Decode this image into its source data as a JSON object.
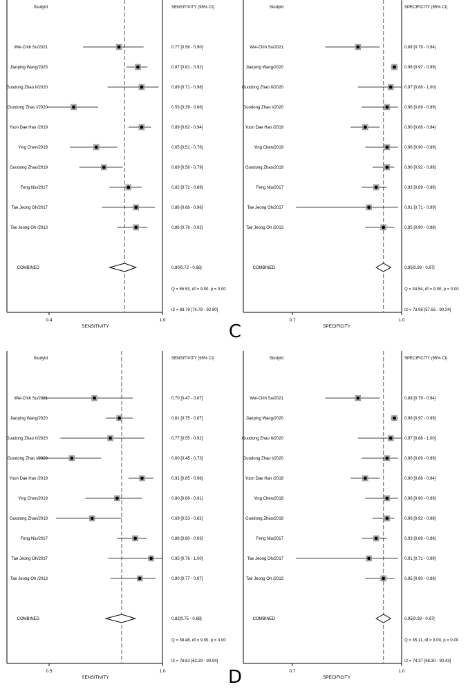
{
  "panel_letters": [
    "C",
    "D"
  ],
  "chart_data": [
    {
      "type": "forest",
      "measure": "SENSITIVITY",
      "col_header_study": "StudyId",
      "col_header_estimate": "SENSITIVITY (95% CI)",
      "xlabel": "SENSITIVITY",
      "xlim": [
        0.4,
        1.0
      ],
      "ticks": [
        {
          "v": 0.4,
          "label": "0.4"
        },
        {
          "v": 1.0,
          "label": "1.0"
        }
      ],
      "reference_line": 0.8,
      "studies": [
        {
          "name": "Wei-Chih Su/2021",
          "est": 0.77,
          "lo": 0.58,
          "hi": 0.9,
          "label": "0.77 [0.58 - 0.90]"
        },
        {
          "name": "Jianping Wang/2020",
          "est": 0.87,
          "lo": 0.81,
          "hi": 0.92,
          "label": "0.87 [0.81 - 0.92]"
        },
        {
          "name": "Guodong Zhao II/2020",
          "est": 0.89,
          "lo": 0.71,
          "hi": 0.98,
          "label": "0.89 [0.71 - 0.98]"
        },
        {
          "name": "Guodong Zhao I/2020",
          "est": 0.53,
          "lo": 0.39,
          "hi": 0.66,
          "label": "0.53 [0.39 - 0.66]"
        },
        {
          "name": "Yoon Dae Han /2019",
          "est": 0.89,
          "lo": 0.82,
          "hi": 0.94,
          "label": "0.89 [0.82 - 0.94]"
        },
        {
          "name": "Ying Chen/2019",
          "est": 0.65,
          "lo": 0.51,
          "hi": 0.76,
          "label": "0.65 [0.51 - 0.76]"
        },
        {
          "name": "Guodong Zhao/2019",
          "est": 0.69,
          "lo": 0.56,
          "hi": 0.79,
          "label": "0.69 [0.56 - 0.79]"
        },
        {
          "name": "Feng Niu/2017",
          "est": 0.82,
          "lo": 0.72,
          "hi": 0.89,
          "label": "0.82 [0.72 - 0.89]"
        },
        {
          "name": "Tae Jeong Oh/2017",
          "est": 0.86,
          "lo": 0.68,
          "hi": 0.96,
          "label": "0.86 [0.68 - 0.96]"
        },
        {
          "name": "Tae Jeong Oh /2013",
          "est": 0.86,
          "lo": 0.76,
          "hi": 0.92,
          "label": "0.86 [0.76 - 0.92]"
        }
      ],
      "combined": {
        "name": "COMBINED",
        "est": 0.8,
        "lo": 0.72,
        "hi": 0.86,
        "label": "0.80[0.72 - 0.86]"
      },
      "stats": [
        "Q = 55.53, df = 9.00, p = 0.00",
        "I2 = 83.79 [74.78 - 92.80]"
      ]
    },
    {
      "type": "forest",
      "measure": "SPECIFICITY",
      "col_header_study": "StudyId",
      "col_header_estimate": "SPECIFICITY (95% CI)",
      "xlabel": "SPECIFICITY",
      "xlim": [
        0.7,
        1.0
      ],
      "ticks": [
        {
          "v": 0.7,
          "label": "0.7"
        },
        {
          "v": 1.0,
          "label": "1.0"
        }
      ],
      "reference_line": 0.95,
      "studies": [
        {
          "name": "Wei-Chih Su/2021",
          "est": 0.88,
          "lo": 0.79,
          "hi": 0.94,
          "label": "0.88 [0.79 - 0.94]"
        },
        {
          "name": "Jianping Wang/2020",
          "est": 0.98,
          "lo": 0.97,
          "hi": 0.99,
          "label": "0.98 [0.97 - 0.99]"
        },
        {
          "name": "Guodong Zhao II/2020",
          "est": 0.97,
          "lo": 0.88,
          "hi": 1.0,
          "label": "0.97 [0.88 - 1.00]"
        },
        {
          "name": "Guodong Zhao I/2020",
          "est": 0.96,
          "lo": 0.89,
          "hi": 0.99,
          "label": "0.96 [0.89 - 0.99]"
        },
        {
          "name": "Yoon Dae Han /2019",
          "est": 0.9,
          "lo": 0.86,
          "hi": 0.94,
          "label": "0.90 [0.86 - 0.94]"
        },
        {
          "name": "Ying Chen/2019",
          "est": 0.96,
          "lo": 0.9,
          "hi": 0.99,
          "label": "0.96 [0.90 - 0.99]"
        },
        {
          "name": "Guodong Zhao/2019",
          "est": 0.96,
          "lo": 0.92,
          "hi": 0.98,
          "label": "0.96 [0.92 - 0.98]"
        },
        {
          "name": "Feng Niu/2017",
          "est": 0.93,
          "lo": 0.89,
          "hi": 0.96,
          "label": "0.93 [0.89 - 0.96]"
        },
        {
          "name": "Tae Jeong Oh/2017",
          "est": 0.91,
          "lo": 0.71,
          "hi": 0.99,
          "label": "0.91 [0.71 - 0.99]"
        },
        {
          "name": "Tae Jeong Oh /2013",
          "est": 0.95,
          "lo": 0.9,
          "hi": 0.98,
          "label": "0.95 [0.90 - 0.98]"
        }
      ],
      "combined": {
        "name": "COMBINED",
        "est": 0.95,
        "lo": 0.93,
        "hi": 0.97,
        "label": "0.95[0.93 - 0.97]"
      },
      "stats": [
        "Q = 34.54, df = 9.00, p = 0.00",
        "I2 = 73.95 [57.55 - 90.34]"
      ]
    },
    {
      "type": "forest",
      "measure": "SENSITIVITY",
      "col_header_study": "StudyId",
      "col_header_estimate": "SENSITIVITY (95% CI)",
      "xlabel": "SENSITIVITY",
      "xlim": [
        0.5,
        1.0
      ],
      "ticks": [
        {
          "v": 0.5,
          "label": "0.5"
        },
        {
          "v": 1.0,
          "label": "1.0"
        }
      ],
      "reference_line": 0.82,
      "studies": [
        {
          "name": "Wei-Chih Su/2021",
          "est": 0.7,
          "lo": 0.47,
          "hi": 0.87,
          "label": "0.70 [0.47 - 0.87]"
        },
        {
          "name": "Jianping Wang/2020",
          "est": 0.81,
          "lo": 0.75,
          "hi": 0.87,
          "label": "0.81 [0.75 - 0.87]"
        },
        {
          "name": "Guodong Zhao II/2020",
          "est": 0.77,
          "lo": 0.55,
          "hi": 0.92,
          "label": "0.77 [0.55 - 0.92]"
        },
        {
          "name": "Guodong Zhao I/2020",
          "est": 0.6,
          "lo": 0.45,
          "hi": 0.73,
          "label": "0.60 [0.45 - 0.73]"
        },
        {
          "name": "Yoon Dae Han /2019",
          "est": 0.91,
          "lo": 0.85,
          "hi": 0.96,
          "label": "0.91 [0.85 - 0.96]"
        },
        {
          "name": "Ying Chen/2019",
          "est": 0.8,
          "lo": 0.66,
          "hi": 0.91,
          "label": "0.80 [0.66 - 0.91]"
        },
        {
          "name": "Guodong Zhao/2019",
          "est": 0.69,
          "lo": 0.53,
          "hi": 0.82,
          "label": "0.69 [0.53 - 0.82]"
        },
        {
          "name": "Feng Niu/2017",
          "est": 0.88,
          "lo": 0.8,
          "hi": 0.93,
          "label": "0.88 [0.80 - 0.93]"
        },
        {
          "name": "Tae Jeong Oh/2017",
          "est": 0.95,
          "lo": 0.76,
          "hi": 1.0,
          "label": "0.95 [0.76 - 1.00]"
        },
        {
          "name": "Tae Jeong Oh /2013",
          "est": 0.9,
          "lo": 0.77,
          "hi": 0.97,
          "label": "0.90 [0.77 - 0.97]"
        }
      ],
      "combined": {
        "name": "COMBINED",
        "est": 0.82,
        "lo": 0.75,
        "hi": 0.88,
        "label": "0.82[0.75 - 0.88]"
      },
      "stats": [
        "Q = 38.48, df = 9.00, p = 0.00",
        "I2 = 76.61 [62.29 - 90.94]"
      ]
    },
    {
      "type": "forest",
      "measure": "SPECIFICITY",
      "col_header_study": "StudyId",
      "col_header_estimate": "SPECIFICITY (95% CI)",
      "xlabel": "SPECIFICITY",
      "xlim": [
        0.7,
        1.0
      ],
      "ticks": [
        {
          "v": 0.7,
          "label": "0.7"
        },
        {
          "v": 1.0,
          "label": "1.0"
        }
      ],
      "reference_line": 0.95,
      "studies": [
        {
          "name": "Wei-Chih Su/2021",
          "est": 0.88,
          "lo": 0.79,
          "hi": 0.94,
          "label": "0.88 [0.79 - 0.94]"
        },
        {
          "name": "Jianping Wang/2020",
          "est": 0.98,
          "lo": 0.97,
          "hi": 0.99,
          "label": "0.98 [0.97 - 0.99]"
        },
        {
          "name": "Guodong Zhao II/2020",
          "est": 0.97,
          "lo": 0.88,
          "hi": 1.0,
          "label": "0.97 [0.88 - 1.00]"
        },
        {
          "name": "Guodong Zhao I/2020",
          "est": 0.96,
          "lo": 0.89,
          "hi": 0.99,
          "label": "0.96 [0.89 - 0.99]"
        },
        {
          "name": "Yoon Dae Han /2019",
          "est": 0.9,
          "lo": 0.86,
          "hi": 0.94,
          "label": "0.90 [0.86 - 0.94]"
        },
        {
          "name": "Ying Chen/2019",
          "est": 0.96,
          "lo": 0.9,
          "hi": 0.99,
          "label": "0.96 [0.90 - 0.99]"
        },
        {
          "name": "Guodong Zhao/2019",
          "est": 0.96,
          "lo": 0.92,
          "hi": 0.98,
          "label": "0.96 [0.92 - 0.98]"
        },
        {
          "name": "Feng Niu/2017",
          "est": 0.93,
          "lo": 0.89,
          "hi": 0.96,
          "label": "0.93 [0.89 - 0.96]"
        },
        {
          "name": "Tae Jeong Oh/2017",
          "est": 0.91,
          "lo": 0.71,
          "hi": 0.99,
          "label": "0.91 [0.71 - 0.99]"
        },
        {
          "name": "Tae Jeong Oh /2013",
          "est": 0.95,
          "lo": 0.9,
          "hi": 0.98,
          "label": "0.95 [0.90 - 0.98]"
        }
      ],
      "combined": {
        "name": "COMBINED",
        "est": 0.95,
        "lo": 0.93,
        "hi": 0.97,
        "label": "0.95[0.93 - 0.97]"
      },
      "stats": [
        "Q = 35.11, df = 9.00, p = 0.00",
        "I2 = 74.37 [58.30 - 90.43]"
      ]
    }
  ]
}
